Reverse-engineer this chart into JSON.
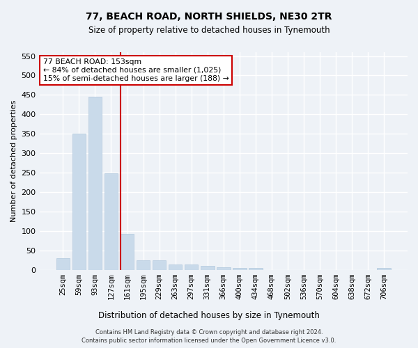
{
  "title": "77, BEACH ROAD, NORTH SHIELDS, NE30 2TR",
  "subtitle": "Size of property relative to detached houses in Tynemouth",
  "xlabel": "Distribution of detached houses by size in Tynemouth",
  "ylabel": "Number of detached properties",
  "categories": [
    "25sqm",
    "59sqm",
    "93sqm",
    "127sqm",
    "161sqm",
    "195sqm",
    "229sqm",
    "263sqm",
    "297sqm",
    "331sqm",
    "366sqm",
    "400sqm",
    "434sqm",
    "468sqm",
    "502sqm",
    "536sqm",
    "570sqm",
    "604sqm",
    "638sqm",
    "672sqm",
    "706sqm"
  ],
  "values": [
    30,
    350,
    445,
    248,
    92,
    25,
    25,
    14,
    14,
    10,
    6,
    4,
    4,
    0,
    0,
    0,
    0,
    0,
    0,
    0,
    4
  ],
  "bar_color": "#c9daea",
  "bar_edgecolor": "#b0c8dc",
  "vline_index": 4,
  "vline_color": "#cc0000",
  "ylim": [
    0,
    560
  ],
  "yticks": [
    0,
    50,
    100,
    150,
    200,
    250,
    300,
    350,
    400,
    450,
    500,
    550
  ],
  "annotation_line1": "77 BEACH ROAD: 153sqm",
  "annotation_line2": "← 84% of detached houses are smaller (1,025)",
  "annotation_line3": "15% of semi-detached houses are larger (188) →",
  "annotation_box_color": "#ffffff",
  "annotation_box_edgecolor": "#cc0000",
  "footer_line1": "Contains HM Land Registry data © Crown copyright and database right 2024.",
  "footer_line2": "Contains public sector information licensed under the Open Government Licence v3.0.",
  "background_color": "#eef2f7",
  "grid_color": "#ffffff",
  "fig_width": 6.0,
  "fig_height": 5.0,
  "dpi": 100
}
